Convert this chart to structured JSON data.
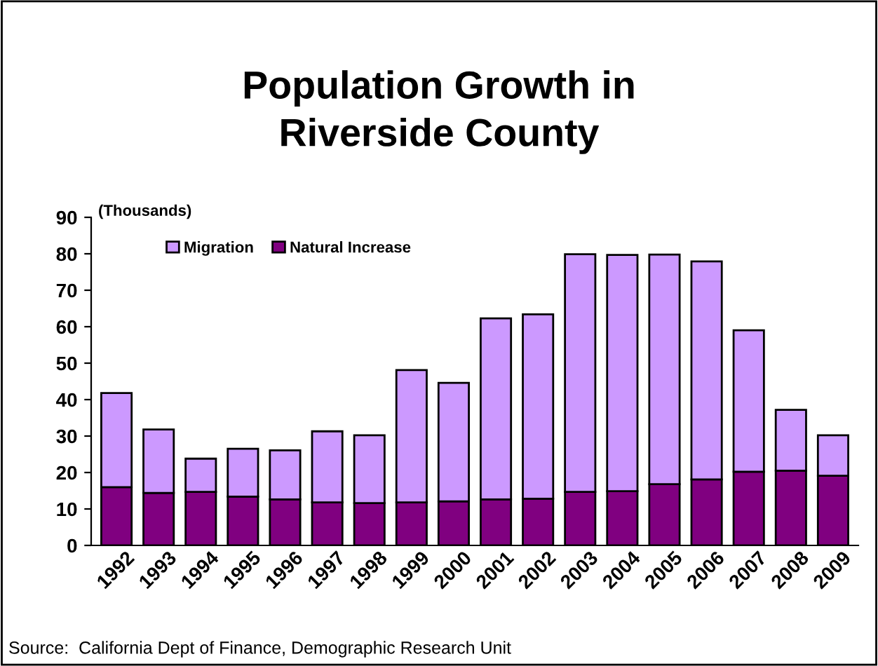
{
  "chart_data": {
    "type": "bar",
    "stacked": true,
    "title": "Population Growth in\nRiverside County",
    "categories": [
      "1992",
      "1993",
      "1994",
      "1995",
      "1996",
      "1997",
      "1998",
      "1999",
      "2000",
      "2001",
      "2002",
      "2003",
      "2004",
      "2005",
      "2006",
      "2007",
      "2008",
      "2009"
    ],
    "series": [
      {
        "name": "Natural Increase",
        "color": "#800080",
        "values": [
          16,
          14.4,
          14.7,
          13.4,
          12.6,
          11.8,
          11.6,
          11.8,
          12.1,
          12.6,
          12.8,
          14.7,
          14.9,
          16.8,
          18.1,
          20.2,
          20.5,
          19.1
        ]
      },
      {
        "name": "Migration",
        "color": "#cc99ff",
        "values": [
          25.8,
          17.4,
          9.1,
          13.1,
          13.5,
          19.5,
          18.6,
          36.3,
          32.5,
          49.7,
          50.6,
          65.2,
          64.8,
          63.0,
          59.8,
          38.8,
          16.7,
          11.1
        ]
      }
    ],
    "ylim": [
      0,
      90
    ],
    "yticks": [
      0,
      10,
      20,
      30,
      40,
      50,
      60,
      70,
      80,
      90
    ],
    "grid": false,
    "legend": "top left",
    "annotations": [
      "(Thousands)",
      "Source:  California Dept of Finance, Demographic Research Unit"
    ]
  }
}
